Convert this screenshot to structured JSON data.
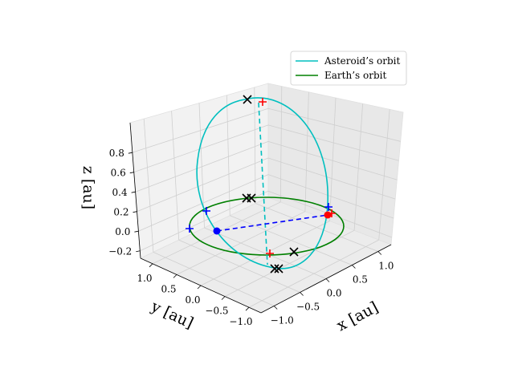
{
  "chart_data": {
    "type": "3d-line",
    "title": "",
    "x_label": "x [au]",
    "y_label": "y [au]",
    "z_label": "z [au]",
    "x_ticks": [
      "−1.0",
      "−0.5",
      "0.0",
      "0.5",
      "1.0"
    ],
    "y_ticks": [
      "1.0",
      "0.5",
      "0.0",
      "−0.5",
      "−1.0"
    ],
    "z_ticks": [
      "0.8",
      "0.6",
      "0.4",
      "0.2",
      "0.0",
      "−0.2"
    ],
    "xlim": [
      -1.2,
      1.2
    ],
    "ylim": [
      -1.2,
      1.2
    ],
    "zlim": [
      -0.25,
      0.9
    ],
    "grid": true,
    "legend": "top-right",
    "series": [
      {
        "name": "Asteroid’s orbit",
        "color": "#00bfbf",
        "style": "solid",
        "description": "tilted ellipse, nearly vertical plane through the origin"
      },
      {
        "name": "Earth’s orbit",
        "color": "#008000",
        "style": "solid",
        "description": "unit circle in the ecliptic plane z=0"
      }
    ],
    "lines": [
      {
        "color": "#00bfbf",
        "style": "dashed",
        "from": [
          0,
          -0.35,
          0.88
        ],
        "to": [
          0,
          0.35,
          -0.2
        ]
      },
      {
        "color": "#0000ff",
        "style": "dashed",
        "from": [
          -0.55,
          0.65,
          0.0
        ],
        "to": [
          0.55,
          -0.65,
          0.0
        ]
      }
    ],
    "markers": {
      "sun_dot_red": [
        0.55,
        -0.65,
        0.0
      ],
      "earth_dot_blue": [
        -0.55,
        0.65,
        0.0
      ],
      "black_x": [
        [
          0,
          -0.35,
          0.88
        ],
        [
          0,
          0,
          0.2
        ],
        [
          0.45,
          -0.6,
          0.0
        ],
        [
          0,
          0.35,
          -0.2
        ]
      ],
      "red_plus": [
        [
          0.05,
          -0.4,
          0.87
        ],
        [
          0.62,
          -0.7,
          0.0
        ],
        [
          0.1,
          0.4,
          -0.2
        ]
      ],
      "blue_plus": [
        [
          -0.75,
          0.65,
          0.0
        ],
        [
          -0.9,
          0.95,
          0.0
        ],
        [
          0.45,
          -0.7,
          0.0
        ]
      ]
    }
  }
}
